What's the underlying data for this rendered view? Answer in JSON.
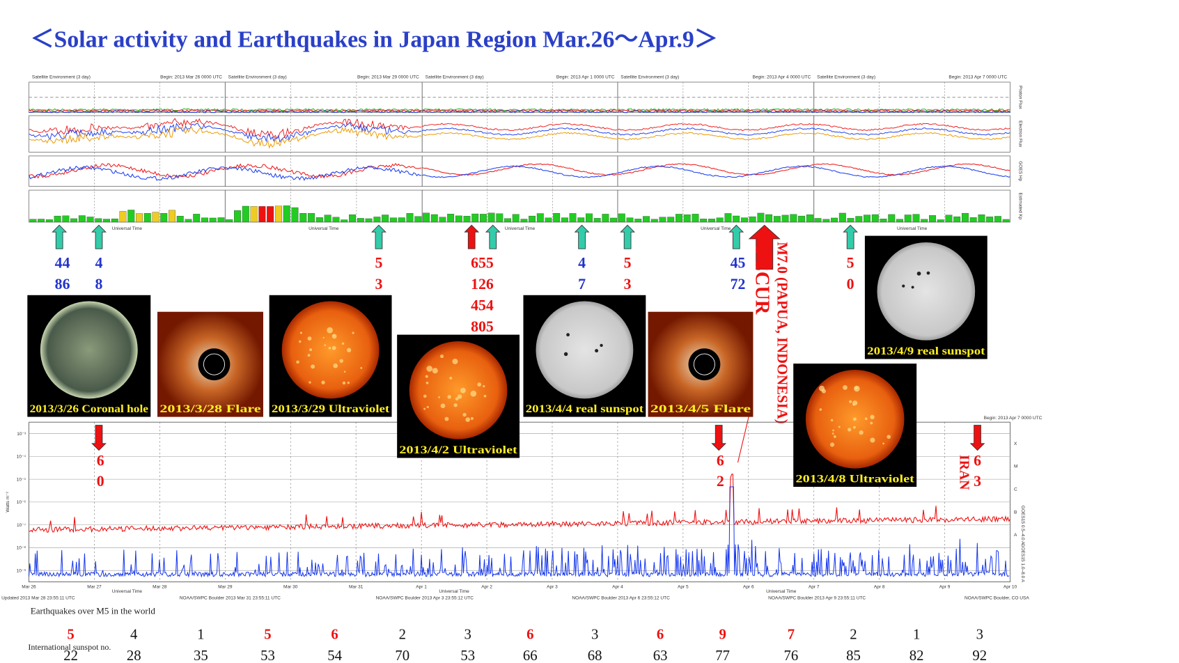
{
  "title": "＜Solar activity and Earthquakes in Japan Region Mar.26～Apr.9＞",
  "top_chart": {
    "panel_header": "Satellite Environment (3 day)",
    "begins": [
      "Begin: 2013 Mar 26 0000 UTC",
      "Begin: 2013 Mar 29 0000 UTC",
      "Begin: 2013 Apr 1 0000 UTC",
      "Begin: 2013 Apr 4 0000 UTC",
      "Begin: 2013 Apr 7 0000 UTC"
    ],
    "row_labels": [
      "Proton Flux",
      "Electron Flux",
      "GOES Hp",
      "Estimated Kp"
    ],
    "axis_label": "Universal Time"
  },
  "annotations": [
    {
      "lines": [
        "44",
        "86"
      ],
      "color": "#2233cc"
    },
    {
      "lines": [
        "4",
        "8"
      ],
      "color": "#2233cc"
    },
    {
      "lines": [
        "5",
        "3"
      ],
      "color": "#ee1111"
    },
    {
      "lines": [
        "655",
        "126",
        "454",
        "805"
      ],
      "color": "#ee1111"
    },
    {
      "lines": [
        "4",
        "7"
      ],
      "color": "#2233cc"
    },
    {
      "lines": [
        "5",
        "3"
      ],
      "color": "#ee1111"
    },
    {
      "lines": [
        "45",
        "72"
      ],
      "color": "#2233cc"
    },
    {
      "lines": [
        "5",
        "0"
      ],
      "color": "#ee1111"
    }
  ],
  "big_event": {
    "lines": [
      "M7.0 (PAPUA, INDONESIA)",
      "OCCUR"
    ],
    "color": "#ee1111"
  },
  "lower_annotations": [
    {
      "lines": [
        "6",
        "0"
      ],
      "color": "#ee1111"
    },
    {
      "lines": [
        "6",
        "2"
      ],
      "color": "#ee1111"
    },
    {
      "lines": [
        "6",
        "3"
      ],
      "color": "#ee1111",
      "place": "IRAN"
    }
  ],
  "images": [
    {
      "caption": "2013/3/26 Coronal hole",
      "style": "coronal"
    },
    {
      "caption": "2013/3/28 Flare",
      "style": "flare"
    },
    {
      "caption": "2013/3/29 Ultraviolet",
      "style": "uv"
    },
    {
      "caption": "2013/4/2 Ultraviolet",
      "style": "uv"
    },
    {
      "caption": "2013/4/4 real sunspot",
      "style": "sunspot"
    },
    {
      "caption": "2013/4/5 Flare",
      "style": "flare"
    },
    {
      "caption": "2013/4/9 real sunspot",
      "style": "sunspot"
    },
    {
      "caption": "2013/4/8 Ultraviolet",
      "style": "uv"
    }
  ],
  "xray_chart": {
    "ylabel": "Watts m⁻²",
    "begin": "Begin: 2013 Apr 7 0000 UTC",
    "yticks": [
      "10⁻³",
      "10⁻⁴",
      "10⁻⁵",
      "10⁻⁶",
      "10⁻⁷",
      "10⁻⁸",
      "10⁻⁹"
    ],
    "classes": [
      "X",
      "M",
      "C",
      "B",
      "A"
    ],
    "series_labels": [
      "GOES15 1.0–8.0 A",
      "GOES15 0.5–4.0 A"
    ],
    "xlabels": [
      "Mar 26",
      "Mar 27",
      "Mar 28",
      "Mar 29",
      "Mar 30",
      "Mar 31",
      "Apr 1",
      "Apr 2",
      "Apr 3",
      "Apr 4",
      "Apr 5",
      "Apr 6",
      "Apr 7",
      "Apr 8",
      "Apr 9",
      "Apr 10"
    ],
    "axis_label": "Universal Time",
    "footers": [
      "Updated 2013 Mar 28 23:55:11 UTC",
      "NOAA/SWPC Boulder 2013 Mar 31 23:55:11 UTC",
      "NOAA/SWPC Boulder 2013 Apr 3 23:55:12 UTC",
      "NOAA/SWPC Boulder 2013 Apr 6 23:55:12 UTC",
      "NOAA/SWPC Boulder 2013 Apr 9 23:55:11 UTC",
      "NOAA/SWPC Boulder, CO USA"
    ]
  },
  "earthquakes": {
    "label": "Earthquakes over M5 in the world",
    "values": [
      5,
      4,
      1,
      5,
      6,
      2,
      3,
      6,
      3,
      6,
      9,
      7,
      2,
      1,
      3
    ],
    "colors": [
      "#ee1111",
      "#111111",
      "#111111",
      "#ee1111",
      "#ee1111",
      "#111111",
      "#111111",
      "#ee1111",
      "#111111",
      "#ee1111",
      "#ee1111",
      "#ee1111",
      "#111111",
      "#111111",
      "#111111"
    ]
  },
  "sunspots": {
    "label": "International sunspot no.",
    "values": [
      22,
      28,
      35,
      53,
      54,
      70,
      53,
      66,
      68,
      63,
      77,
      76,
      85,
      82,
      92
    ]
  }
}
